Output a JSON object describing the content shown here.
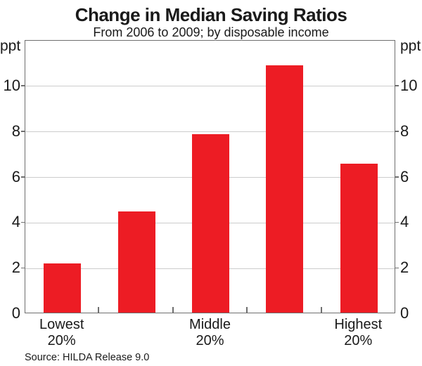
{
  "header": {
    "title": "Change in Median Saving Ratios",
    "subtitle": "From 2006 to 2009; by disposable income"
  },
  "chart_data": {
    "type": "bar",
    "title": "Change in Median Saving Ratios",
    "subtitle": "From 2006 to 2009; by disposable income",
    "categories": [
      "Lowest\n20%",
      "",
      "Middle\n20%",
      "",
      "Highest\n20%"
    ],
    "values": [
      2.15,
      4.45,
      7.85,
      10.85,
      6.55
    ],
    "unit": "ppt",
    "ylabel_left": "ppt",
    "ylabel_right": "ppt",
    "yticks": [
      0,
      2,
      4,
      6,
      8,
      10
    ],
    "ylim": [
      0,
      12
    ],
    "grid": true,
    "legend": "none",
    "bar_color": "#ED1C24",
    "gridline_color": "#cccccc",
    "frame_color": "#6e6e6e"
  },
  "footer": {
    "source": "Source: HILDA Release 9.0"
  }
}
